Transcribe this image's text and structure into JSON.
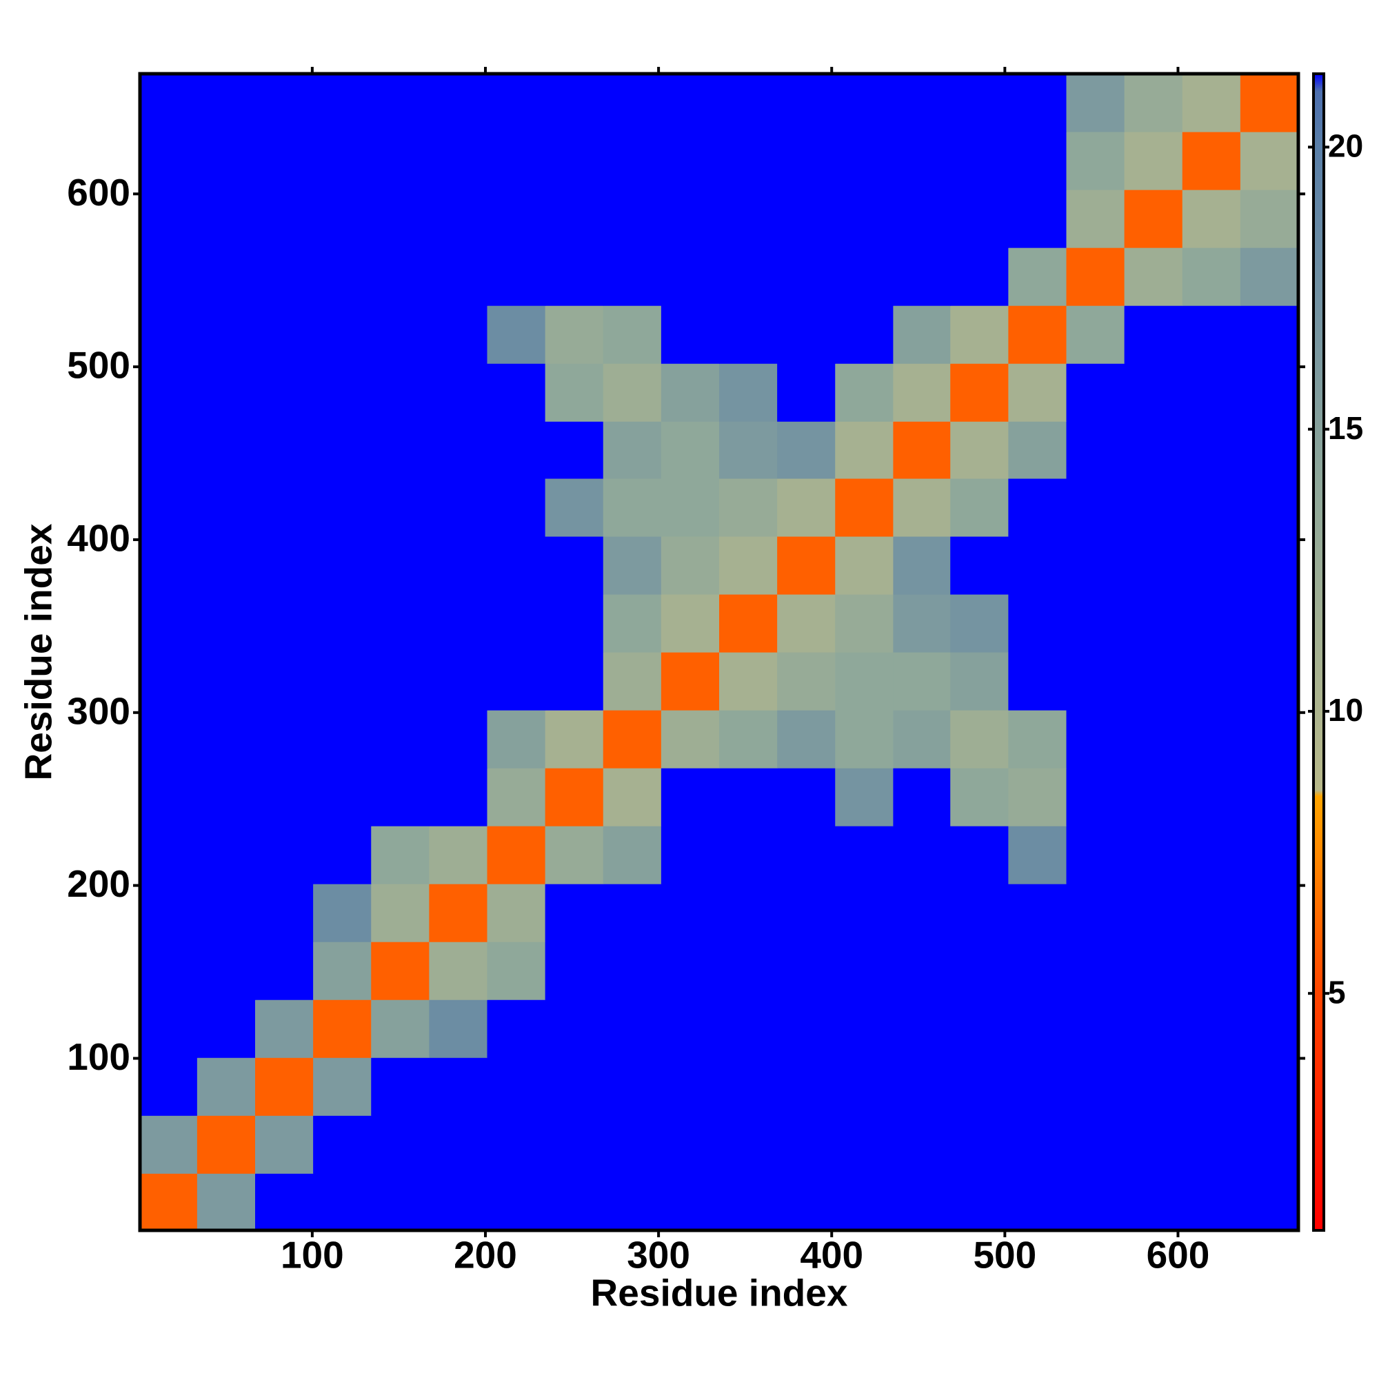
{
  "chart_data": {
    "type": "heatmap",
    "x_label": "Residue index",
    "y_label": "Residue index",
    "x": [
      17,
      50,
      84,
      117,
      151,
      184,
      218,
      251,
      285,
      318,
      352,
      385,
      419,
      452,
      485,
      519,
      552,
      586,
      619,
      653
    ],
    "y": [
      17,
      50,
      84,
      117,
      151,
      184,
      218,
      251,
      285,
      318,
      352,
      385,
      419,
      452,
      485,
      519,
      552,
      586,
      619,
      653
    ],
    "z": [
      [
        6,
        16,
        22,
        22,
        22,
        22,
        22,
        22,
        22,
        22,
        22,
        22,
        22,
        22,
        22,
        22,
        22,
        22,
        22,
        22
      ],
      [
        16,
        6,
        16,
        22,
        22,
        22,
        22,
        22,
        22,
        22,
        22,
        22,
        22,
        22,
        22,
        22,
        22,
        22,
        22,
        22
      ],
      [
        22,
        16,
        6,
        16,
        22,
        22,
        22,
        22,
        22,
        22,
        22,
        22,
        22,
        22,
        22,
        22,
        22,
        22,
        22,
        22
      ],
      [
        22,
        22,
        16,
        6,
        15,
        18,
        22,
        22,
        22,
        22,
        22,
        22,
        22,
        22,
        22,
        22,
        22,
        22,
        22,
        22
      ],
      [
        22,
        22,
        22,
        15,
        6,
        12,
        14,
        22,
        22,
        22,
        22,
        22,
        22,
        22,
        22,
        22,
        22,
        22,
        22,
        22
      ],
      [
        22,
        22,
        22,
        18,
        12,
        6,
        12,
        22,
        22,
        22,
        22,
        22,
        22,
        22,
        22,
        22,
        22,
        22,
        22,
        22
      ],
      [
        22,
        22,
        22,
        22,
        14,
        12,
        6,
        13,
        15,
        22,
        22,
        22,
        22,
        22,
        22,
        18,
        22,
        22,
        22,
        22
      ],
      [
        22,
        22,
        22,
        22,
        22,
        22,
        13,
        6,
        11,
        22,
        22,
        22,
        17,
        22,
        14,
        13,
        22,
        22,
        22,
        22
      ],
      [
        22,
        22,
        22,
        22,
        22,
        22,
        15,
        11,
        6,
        12,
        14,
        16,
        14,
        15,
        12,
        14,
        22,
        22,
        22,
        22
      ],
      [
        22,
        22,
        22,
        22,
        22,
        22,
        22,
        22,
        12,
        6,
        11,
        13,
        14,
        14,
        15,
        22,
        22,
        22,
        22,
        22
      ],
      [
        22,
        22,
        22,
        22,
        22,
        22,
        22,
        22,
        14,
        11,
        6,
        11,
        13,
        16,
        17,
        22,
        22,
        22,
        22,
        22
      ],
      [
        22,
        22,
        22,
        22,
        22,
        22,
        22,
        22,
        16,
        13,
        11,
        6,
        11,
        17,
        22,
        22,
        22,
        22,
        22,
        22
      ],
      [
        22,
        22,
        22,
        22,
        22,
        22,
        22,
        17,
        14,
        14,
        13,
        11,
        6,
        11,
        14,
        22,
        22,
        22,
        22,
        22
      ],
      [
        22,
        22,
        22,
        22,
        22,
        22,
        22,
        22,
        15,
        14,
        16,
        17,
        11,
        6,
        11,
        15,
        22,
        22,
        22,
        22
      ],
      [
        22,
        22,
        22,
        22,
        22,
        22,
        22,
        14,
        12,
        15,
        17,
        22,
        14,
        11,
        6,
        11,
        22,
        22,
        22,
        22
      ],
      [
        22,
        22,
        22,
        22,
        22,
        22,
        18,
        13,
        14,
        22,
        22,
        22,
        22,
        15,
        11,
        6,
        14,
        22,
        22,
        22
      ],
      [
        22,
        22,
        22,
        22,
        22,
        22,
        22,
        22,
        22,
        22,
        22,
        22,
        22,
        22,
        22,
        14,
        6,
        12,
        14,
        16
      ],
      [
        22,
        22,
        22,
        22,
        22,
        22,
        22,
        22,
        22,
        22,
        22,
        22,
        22,
        22,
        22,
        22,
        12,
        6,
        11,
        13
      ],
      [
        22,
        22,
        22,
        22,
        22,
        22,
        22,
        22,
        22,
        22,
        22,
        22,
        22,
        22,
        22,
        22,
        14,
        11,
        6,
        11
      ],
      [
        22,
        22,
        22,
        22,
        22,
        22,
        22,
        22,
        22,
        22,
        22,
        22,
        22,
        22,
        22,
        22,
        16,
        13,
        11,
        6
      ]
    ],
    "xlim": [
      0.5,
      669.5
    ],
    "ylim": [
      0.5,
      669.5
    ],
    "xticks": [
      100,
      200,
      300,
      400,
      500,
      600
    ],
    "yticks": [
      100,
      200,
      300,
      400,
      500,
      600
    ],
    "zlim": [
      0.8,
      21.3
    ],
    "zticks": [
      5,
      10,
      15,
      20
    ],
    "colorscale": [
      [
        0.8,
        "#ff0000"
      ],
      [
        5,
        "#ff4500"
      ],
      [
        8.5,
        "#ffa500"
      ],
      [
        8.6,
        "#b8b98a"
      ],
      [
        14,
        "#8fa89a"
      ],
      [
        20,
        "#5a7fa8"
      ],
      [
        21,
        "#4d6fae"
      ],
      [
        21.3,
        "#0000ff"
      ]
    ]
  }
}
